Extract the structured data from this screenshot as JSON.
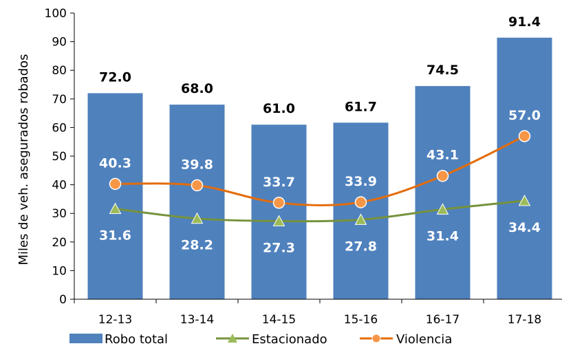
{
  "chart_data": {
    "type": "bar",
    "title": "",
    "xlabel": "",
    "ylabel": "Miles de veh. asegurados robados",
    "categories": [
      "12-13",
      "13-14",
      "14-15",
      "15-16",
      "16-17",
      "17-18"
    ],
    "ylim": [
      0,
      100
    ],
    "yticks": [
      0,
      10,
      20,
      30,
      40,
      50,
      60,
      70,
      80,
      90,
      100
    ],
    "grid": false,
    "legend_position": "bottom",
    "series": [
      {
        "name": "Robo total",
        "kind": "bar",
        "color": "#4f81bd",
        "values": [
          72.0,
          68.0,
          61.0,
          61.7,
          74.5,
          91.4
        ],
        "labels": [
          "72.0",
          "68.0",
          "61.0",
          "61.7",
          "74.5",
          "91.4"
        ]
      },
      {
        "name": "Estacionado",
        "kind": "line",
        "marker": "triangle",
        "color": "#76923c",
        "marker_color": "#9bbb59",
        "values": [
          31.6,
          28.2,
          27.3,
          27.8,
          31.4,
          34.4
        ],
        "labels": [
          "31.6",
          "28.2",
          "27.3",
          "27.8",
          "31.4",
          "34.4"
        ]
      },
      {
        "name": "Violencia",
        "kind": "line",
        "marker": "circle",
        "color": "#e46c0a",
        "marker_color": "#f79646",
        "values": [
          40.3,
          39.8,
          33.7,
          33.9,
          43.1,
          57.0
        ],
        "labels": [
          "40.3",
          "39.8",
          "33.7",
          "33.9",
          "43.1",
          "57.0"
        ]
      }
    ]
  }
}
